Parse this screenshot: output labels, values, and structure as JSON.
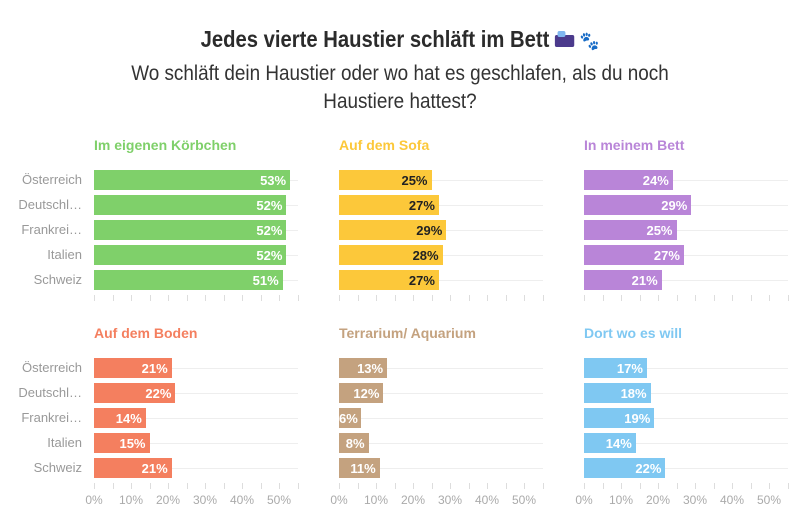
{
  "header": {
    "title": "Jedes vierte Haustier schläft im Bett",
    "title_icons": [
      "bed-icon",
      "paw-prints-icon"
    ],
    "paw": "🐾",
    "subtitle": "Wo schläft dein Haustier oder wo hat es geschlafen, als du noch Haustiere hattest?"
  },
  "chart_data": {
    "type": "bar",
    "orientation": "horizontal",
    "categories": [
      "Österreich",
      "Deutschl…",
      "Frankrei…",
      "Italien",
      "Schweiz"
    ],
    "xlim": [
      0,
      55
    ],
    "xticks": [
      "0%",
      "10%",
      "20%",
      "30%",
      "40%",
      "50%"
    ],
    "grid": true,
    "panels": [
      {
        "title": "Im eigenen Körbchen",
        "color": "#7fd06a",
        "label_color": "#ffffff",
        "values": [
          53,
          52,
          52,
          52,
          51
        ]
      },
      {
        "title": "Auf dem Sofa",
        "color": "#fcc83a",
        "label_color": "#222222",
        "values": [
          25,
          27,
          29,
          28,
          27
        ]
      },
      {
        "title": "In meinem Bett",
        "color": "#b985d8",
        "label_color": "#ffffff",
        "values": [
          24,
          29,
          25,
          27,
          21
        ]
      },
      {
        "title": "Auf dem Boden",
        "color": "#f47f5f",
        "label_color": "#ffffff",
        "values": [
          21,
          22,
          14,
          15,
          21
        ]
      },
      {
        "title": "Terrarium/ Aquarium",
        "color": "#c4a27f",
        "label_color": "#ffffff",
        "values": [
          13,
          12,
          6,
          8,
          11
        ]
      },
      {
        "title": "Dort wo es will",
        "color": "#7fc8f2",
        "label_color": "#ffffff",
        "values": [
          17,
          18,
          19,
          14,
          22
        ]
      }
    ]
  }
}
